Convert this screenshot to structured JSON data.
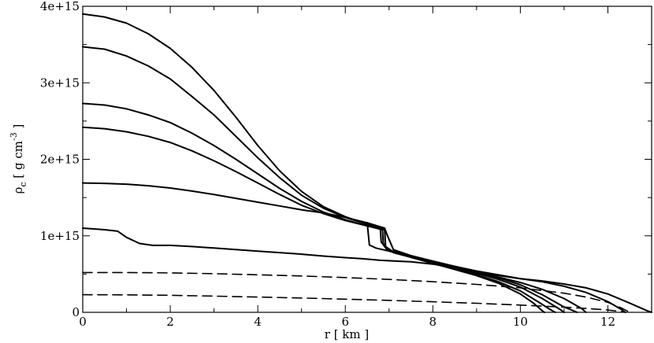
{
  "chart_data": {
    "type": "line",
    "title": "",
    "xlabel": "r [ km ]",
    "ylabel": {
      "base": "ρ",
      "sub": "c",
      "rest": " [ g cm",
      "sup": "-3",
      "end": " ]"
    },
    "xlim": [
      0,
      13
    ],
    "ylim": [
      0,
      4000000000000000.0
    ],
    "x_ticks": [
      0,
      2,
      4,
      6,
      8,
      10,
      12
    ],
    "x_tick_labels": [
      "0",
      "2",
      "4",
      "6",
      "8",
      "10",
      "12"
    ],
    "y_ticks": [
      0,
      1000000000000000.0,
      2000000000000000.0,
      3000000000000000.0,
      4000000000000000.0
    ],
    "y_tick_labels": [
      "0",
      "1e+15",
      "2e+15",
      "3e+15",
      "4e+15"
    ],
    "grid": false,
    "series": [
      {
        "style": "solid",
        "points": [
          [
            0,
            3900000000000000.0
          ],
          [
            0.5,
            3860000000000000.0
          ],
          [
            1,
            3780000000000000.0
          ],
          [
            1.5,
            3640000000000000.0
          ],
          [
            2,
            3450000000000000.0
          ],
          [
            2.5,
            3200000000000000.0
          ],
          [
            3,
            2900000000000000.0
          ],
          [
            3.5,
            2550000000000000.0
          ],
          [
            4,
            2180000000000000.0
          ],
          [
            4.5,
            1850000000000000.0
          ],
          [
            5,
            1580000000000000.0
          ],
          [
            5.5,
            1380000000000000.0
          ],
          [
            6,
            1250000000000000.0
          ],
          [
            6.5,
            1150000000000000.0
          ],
          [
            6.9,
            1090000000000000.0
          ],
          [
            6.92,
            850000000000000.0
          ],
          [
            7.1,
            780000000000000.0
          ],
          [
            7.5,
            720000000000000.0
          ],
          [
            8,
            640000000000000.0
          ],
          [
            8.5,
            560000000000000.0
          ],
          [
            9,
            480000000000000.0
          ],
          [
            9.5,
            380000000000000.0
          ],
          [
            10,
            240000000000000.0
          ],
          [
            10.3,
            120000000000000.0
          ],
          [
            10.5,
            20000000000000.0
          ],
          [
            10.55,
            0
          ]
        ]
      },
      {
        "style": "solid",
        "points": [
          [
            0,
            3470000000000000.0
          ],
          [
            0.5,
            3440000000000000.0
          ],
          [
            1,
            3350000000000000.0
          ],
          [
            1.5,
            3220000000000000.0
          ],
          [
            2,
            3050000000000000.0
          ],
          [
            2.5,
            2820000000000000.0
          ],
          [
            3,
            2580000000000000.0
          ],
          [
            3.5,
            2300000000000000.0
          ],
          [
            4,
            2020000000000000.0
          ],
          [
            4.5,
            1760000000000000.0
          ],
          [
            5,
            1530000000000000.0
          ],
          [
            5.5,
            1360000000000000.0
          ],
          [
            6,
            1240000000000000.0
          ],
          [
            6.5,
            1150000000000000.0
          ],
          [
            6.9,
            1080000000000000.0
          ],
          [
            6.92,
            860000000000000.0
          ],
          [
            7.1,
            790000000000000.0
          ],
          [
            7.5,
            720000000000000.0
          ],
          [
            8,
            640000000000000.0
          ],
          [
            8.5,
            570000000000000.0
          ],
          [
            9,
            490000000000000.0
          ],
          [
            9.5,
            400000000000000.0
          ],
          [
            10,
            280000000000000.0
          ],
          [
            10.4,
            140000000000000.0
          ],
          [
            10.7,
            30000000000000.0
          ],
          [
            10.8,
            0
          ]
        ]
      },
      {
        "style": "solid",
        "points": [
          [
            0,
            2730000000000000.0
          ],
          [
            0.5,
            2710000000000000.0
          ],
          [
            1,
            2660000000000000.0
          ],
          [
            1.5,
            2580000000000000.0
          ],
          [
            2,
            2480000000000000.0
          ],
          [
            2.5,
            2340000000000000.0
          ],
          [
            3,
            2180000000000000.0
          ],
          [
            3.5,
            2000000000000000.0
          ],
          [
            4,
            1810000000000000.0
          ],
          [
            4.5,
            1620000000000000.0
          ],
          [
            5,
            1450000000000000.0
          ],
          [
            5.5,
            1310000000000000.0
          ],
          [
            6,
            1210000000000000.0
          ],
          [
            6.5,
            1130000000000000.0
          ],
          [
            6.85,
            1080000000000000.0
          ],
          [
            6.87,
            900000000000000.0
          ],
          [
            7.0,
            800000000000000.0
          ],
          [
            7.5,
            730000000000000.0
          ],
          [
            8,
            650000000000000.0
          ],
          [
            8.5,
            580000000000000.0
          ],
          [
            9,
            510000000000000.0
          ],
          [
            9.5,
            430000000000000.0
          ],
          [
            10,
            330000000000000.0
          ],
          [
            10.5,
            180000000000000.0
          ],
          [
            10.9,
            40000000000000.0
          ],
          [
            11.0,
            0
          ]
        ]
      },
      {
        "style": "solid",
        "points": [
          [
            0,
            2420000000000000.0
          ],
          [
            0.5,
            2400000000000000.0
          ],
          [
            1,
            2360000000000000.0
          ],
          [
            1.5,
            2300000000000000.0
          ],
          [
            2,
            2220000000000000.0
          ],
          [
            2.5,
            2110000000000000.0
          ],
          [
            3,
            1980000000000000.0
          ],
          [
            3.5,
            1840000000000000.0
          ],
          [
            4,
            1690000000000000.0
          ],
          [
            4.5,
            1540000000000000.0
          ],
          [
            5,
            1400000000000000.0
          ],
          [
            5.5,
            1290000000000000.0
          ],
          [
            6,
            1200000000000000.0
          ],
          [
            6.5,
            1130000000000000.0
          ],
          [
            6.8,
            1090000000000000.0
          ],
          [
            6.82,
            920000000000000.0
          ],
          [
            6.95,
            820000000000000.0
          ],
          [
            7.5,
            740000000000000.0
          ],
          [
            8,
            660000000000000.0
          ],
          [
            8.5,
            590000000000000.0
          ],
          [
            9,
            520000000000000.0
          ],
          [
            9.5,
            450000000000000.0
          ],
          [
            10,
            360000000000000.0
          ],
          [
            10.5,
            230000000000000.0
          ],
          [
            11,
            70000000000000.0
          ],
          [
            11.3,
            0
          ]
        ]
      },
      {
        "style": "solid",
        "points": [
          [
            0,
            1690000000000000.0
          ],
          [
            0.5,
            1685000000000000.0
          ],
          [
            1,
            1675000000000000.0
          ],
          [
            1.5,
            1655000000000000.0
          ],
          [
            2,
            1625000000000000.0
          ],
          [
            2.5,
            1585000000000000.0
          ],
          [
            3,
            1540000000000000.0
          ],
          [
            3.5,
            1490000000000000.0
          ],
          [
            4,
            1440000000000000.0
          ],
          [
            4.5,
            1390000000000000.0
          ],
          [
            5,
            1340000000000000.0
          ],
          [
            5.5,
            1300000000000000.0
          ],
          [
            6,
            1240000000000000.0
          ],
          [
            6.5,
            1170000000000000.0
          ],
          [
            6.9,
            1100000000000000.0
          ],
          [
            6.95,
            1020000000000000.0
          ],
          [
            7.1,
            820000000000000.0
          ],
          [
            7.5,
            740000000000000.0
          ],
          [
            8,
            670000000000000.0
          ],
          [
            8.5,
            600000000000000.0
          ],
          [
            9,
            530000000000000.0
          ],
          [
            9.5,
            460000000000000.0
          ],
          [
            10,
            390000000000000.0
          ],
          [
            10.5,
            300000000000000.0
          ],
          [
            11,
            180000000000000.0
          ],
          [
            11.4,
            50000000000000.0
          ],
          [
            11.5,
            0
          ]
        ]
      },
      {
        "style": "solid",
        "points": [
          [
            0,
            1100000000000000.0
          ],
          [
            0.5,
            1080000000000000.0
          ],
          [
            0.8,
            1060000000000000.0
          ],
          [
            1.0,
            980000000000000.0
          ],
          [
            1.3,
            900000000000000.0
          ],
          [
            1.6,
            875000000000000.0
          ],
          [
            2,
            875000000000000.0
          ],
          [
            2.5,
            860000000000000.0
          ],
          [
            3,
            840000000000000.0
          ],
          [
            3.5,
            820000000000000.0
          ],
          [
            4,
            800000000000000.0
          ],
          [
            4.5,
            780000000000000.0
          ],
          [
            5,
            760000000000000.0
          ],
          [
            5.5,
            735000000000000.0
          ],
          [
            6,
            715000000000000.0
          ],
          [
            6.4,
            700000000000000.0
          ],
          [
            6.8,
            680000000000000.0
          ],
          [
            7.5,
            660000000000000.0
          ],
          [
            8,
            630000000000000.0
          ],
          [
            8.5,
            580000000000000.0
          ],
          [
            9,
            530000000000000.0
          ],
          [
            9.5,
            480000000000000.0
          ],
          [
            10,
            440000000000000.0
          ],
          [
            10.5,
            400000000000000.0
          ],
          [
            11,
            340000000000000.0
          ],
          [
            11.5,
            260000000000000.0
          ],
          [
            12,
            140000000000000.0
          ],
          [
            12.3,
            40000000000000.0
          ],
          [
            12.4,
            0
          ]
        ]
      },
      {
        "style": "solid",
        "points": [
          [
            0,
            0.0
          ],
          [
            0.0,
            0.0
          ]
        ]
      },
      {
        "style": "dashed",
        "points": [
          [
            0,
            520000000000000.0
          ],
          [
            1,
            520000000000000.0
          ],
          [
            2,
            515000000000000.0
          ],
          [
            3,
            505000000000000.0
          ],
          [
            4,
            490000000000000.0
          ],
          [
            5,
            475000000000000.0
          ],
          [
            6,
            455000000000000.0
          ],
          [
            7,
            430000000000000.0
          ],
          [
            8,
            400000000000000.0
          ],
          [
            9,
            365000000000000.0
          ],
          [
            10,
            320000000000000.0
          ],
          [
            11,
            250000000000000.0
          ],
          [
            11.5,
            200000000000000.0
          ],
          [
            12,
            130000000000000.0
          ],
          [
            12.3,
            60000000000000.0
          ],
          [
            12.5,
            0
          ]
        ]
      },
      {
        "style": "dashed",
        "points": [
          [
            0,
            230000000000000.0
          ],
          [
            1,
            228000000000000.0
          ],
          [
            2,
            222000000000000.0
          ],
          [
            3,
            212000000000000.0
          ],
          [
            4,
            200000000000000.0
          ],
          [
            5,
            187000000000000.0
          ],
          [
            6,
            172000000000000.0
          ],
          [
            7,
            156000000000000.0
          ],
          [
            8,
            138000000000000.0
          ],
          [
            9,
            118000000000000.0
          ],
          [
            10,
            95000000000000.0
          ],
          [
            11,
            68000000000000.0
          ],
          [
            11.5,
            50000000000000.0
          ],
          [
            12,
            30000000000000.0
          ],
          [
            12.3,
            10000000000000.0
          ],
          [
            12.4,
            0
          ]
        ]
      },
      {
        "style": "solid",
        "points": [
          [
            6.5,
            1170000000000000.0
          ],
          [
            6.55,
            880000000000000.0
          ],
          [
            6.7,
            840000000000000.0
          ],
          [
            7,
            800000000000000.0
          ],
          [
            7.5,
            730000000000000.0
          ],
          [
            8,
            660000000000000.0
          ],
          [
            8.5,
            600000000000000.0
          ],
          [
            9,
            540000000000000.0
          ],
          [
            9.5,
            490000000000000.0
          ],
          [
            10,
            440000000000000.0
          ],
          [
            10.5,
            410000000000000.0
          ],
          [
            11,
            370000000000000.0
          ],
          [
            11.5,
            320000000000000.0
          ],
          [
            12,
            240000000000000.0
          ],
          [
            12.5,
            120000000000000.0
          ],
          [
            12.9,
            20000000000000.0
          ],
          [
            13,
            0
          ]
        ]
      }
    ]
  }
}
